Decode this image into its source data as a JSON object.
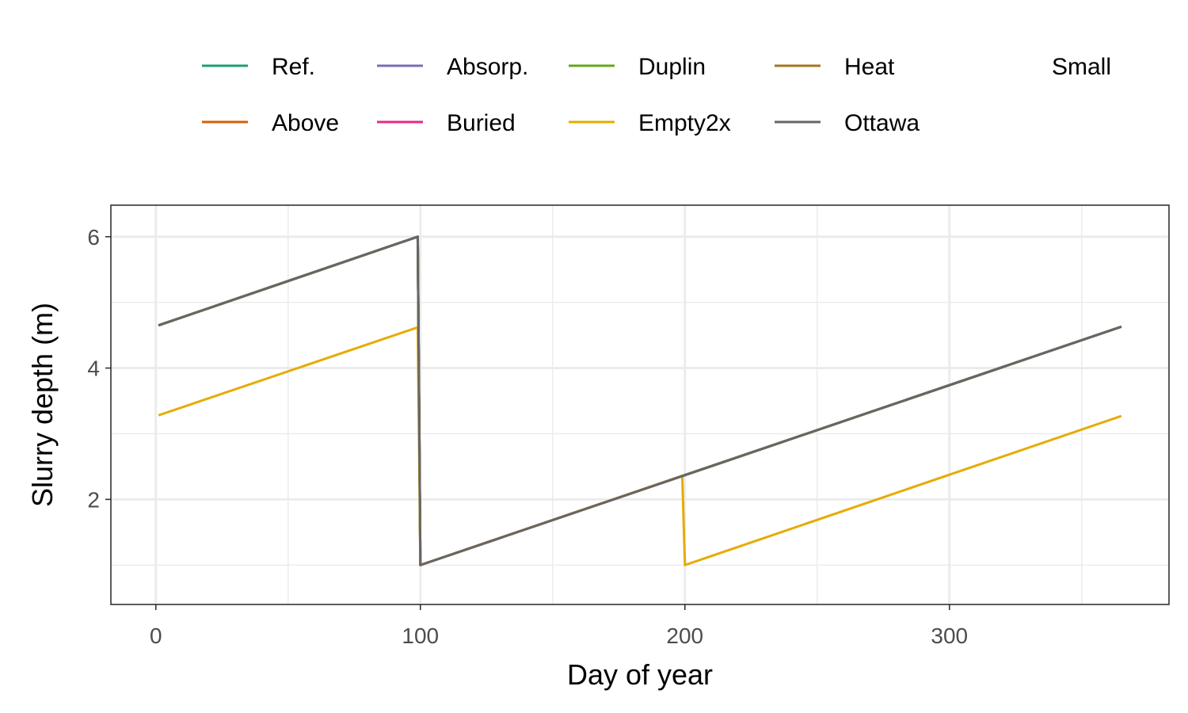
{
  "chart_data": {
    "type": "line",
    "xlabel": "Day of year",
    "ylabel": "Slurry depth (m)",
    "xlim": [
      -17,
      383
    ],
    "ylim": [
      0.4,
      6.48
    ],
    "x_ticks": [
      0,
      100,
      200,
      300
    ],
    "x_tick_labels": [
      "0",
      "100",
      "200",
      "300"
    ],
    "x_minor_ticks": [
      50,
      150,
      250,
      350
    ],
    "y_ticks": [
      2,
      4,
      6
    ],
    "y_tick_labels": [
      "2",
      "4",
      "6"
    ],
    "y_minor_ticks": [
      1,
      3,
      5
    ],
    "grid": true,
    "legend_position": "top",
    "legend_columns": 5,
    "legend": [
      {
        "name": "Ref.",
        "color": "#1B9E77"
      },
      {
        "name": "Above",
        "color": "#D95F02"
      },
      {
        "name": "Absorp.",
        "color": "#7570B3"
      },
      {
        "name": "Buried",
        "color": "#E7298A"
      },
      {
        "name": "Duplin",
        "color": "#66A61E"
      },
      {
        "name": "Empty2x",
        "color": "#E6AB02"
      },
      {
        "name": "Heat",
        "color": "#A6761D"
      },
      {
        "name": "Ottawa",
        "color": "#666666"
      },
      {
        "name": "Small",
        "color": null
      }
    ],
    "series": [
      {
        "name": "Ref.",
        "color": "#1B9E77",
        "x": [
          1,
          99,
          100,
          365
        ],
        "y": [
          4.65,
          6.0,
          1.0,
          4.63
        ]
      },
      {
        "name": "Above",
        "color": "#D95F02",
        "x": [
          1,
          99,
          100,
          365
        ],
        "y": [
          4.65,
          6.0,
          1.0,
          4.63
        ]
      },
      {
        "name": "Absorp.",
        "color": "#7570B3",
        "x": [
          1,
          99,
          100,
          365
        ],
        "y": [
          4.65,
          6.0,
          1.0,
          4.63
        ]
      },
      {
        "name": "Buried",
        "color": "#E7298A",
        "x": [
          1,
          99,
          100,
          365
        ],
        "y": [
          4.65,
          6.0,
          1.0,
          4.63
        ]
      },
      {
        "name": "Duplin",
        "color": "#66A61E",
        "x": [
          1,
          99,
          100,
          365
        ],
        "y": [
          4.65,
          6.0,
          1.0,
          4.63
        ]
      },
      {
        "name": "Heat",
        "color": "#A6761D",
        "x": [
          1,
          99,
          100,
          365
        ],
        "y": [
          4.65,
          6.0,
          1.0,
          4.63
        ]
      },
      {
        "name": "Empty2x",
        "color": "#E6AB02",
        "x": [
          1,
          99,
          100,
          199,
          200,
          365
        ],
        "y": [
          3.28,
          4.62,
          1.0,
          2.36,
          1.0,
          3.27
        ]
      },
      {
        "name": "Ottawa",
        "color": "#666666",
        "x": [
          1,
          99,
          100,
          365
        ],
        "y": [
          4.65,
          6.0,
          1.0,
          4.63
        ]
      }
    ]
  }
}
